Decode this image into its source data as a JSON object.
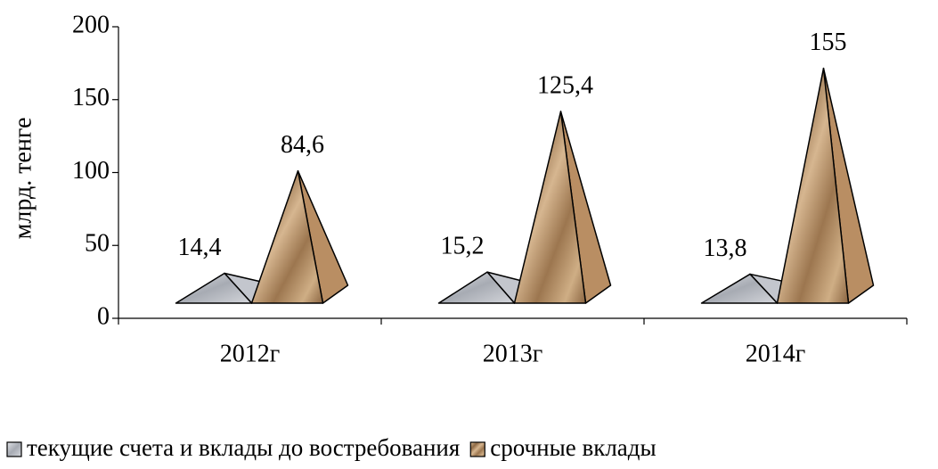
{
  "chart_data": {
    "type": "pyramid",
    "y_label": "млрд. тенге",
    "categories": [
      "2012г",
      "2013г",
      "2014г"
    ],
    "series": [
      {
        "name": "текущие счета и вклады до востребования",
        "color": "#c3c6cd",
        "values": [
          14.4,
          15.2,
          13.8
        ],
        "value_labels": [
          "14,4",
          "15,2",
          "13,8"
        ]
      },
      {
        "name": "срочные вклады",
        "color": "#b98e63",
        "values": [
          84.6,
          125.4,
          155
        ],
        "value_labels": [
          "84,6",
          "125,4",
          "155"
        ]
      }
    ],
    "ylim": [
      0,
      200
    ],
    "yticks": [
      0,
      50,
      100,
      150,
      200
    ],
    "legend": "bottom"
  }
}
